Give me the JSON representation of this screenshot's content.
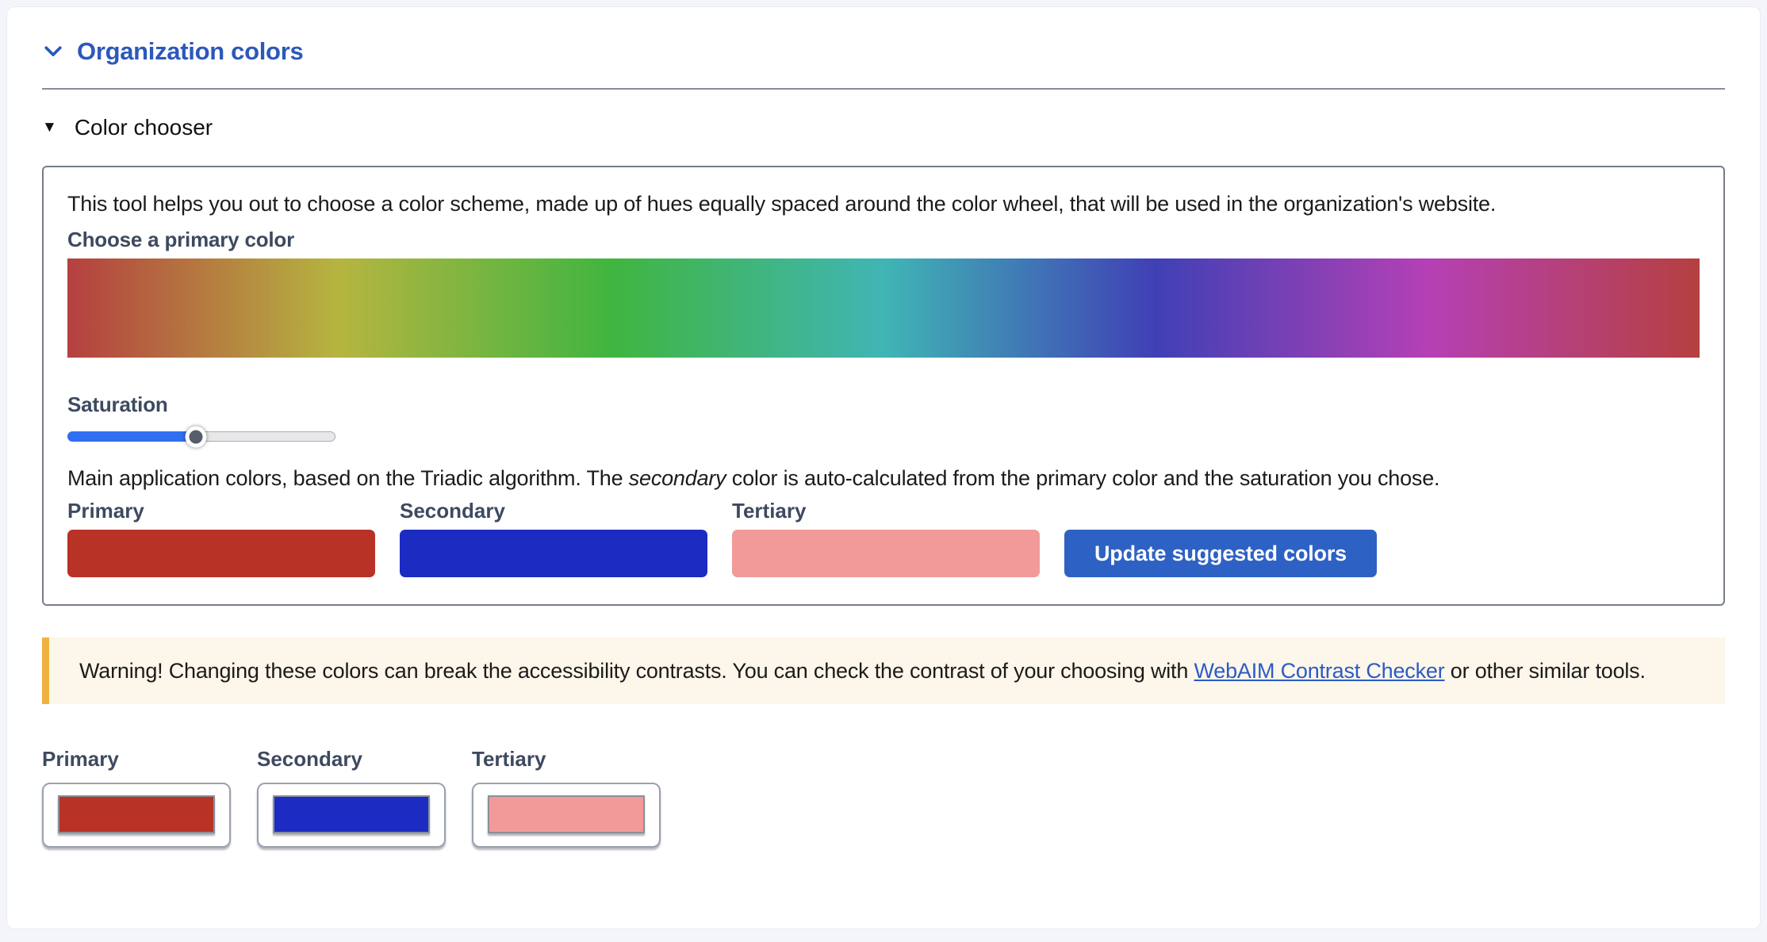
{
  "accordion": {
    "title": "Organization colors",
    "icon": "chevron-down-icon"
  },
  "details": {
    "marker_glyph": "▼",
    "summary": "Color chooser"
  },
  "chooser": {
    "description": "This tool helps you out to choose a color scheme, made up of hues equally spaced around the color wheel, that will be used in the organization's website.",
    "primary_picker_label": "Choose a primary color",
    "hue_gradient_stops": [
      "hsl(0, 48%, 48%)",
      "hsl(30, 48%, 48%)",
      "hsl(60, 48%, 48%)",
      "hsl(90, 48%, 48%)",
      "hsl(120, 48%, 48%)",
      "hsl(150, 48%, 48%)",
      "hsl(180, 48%, 48%)",
      "hsl(210, 48%, 48%)",
      "hsl(240, 48%, 48%)",
      "hsl(270, 48%, 48%)",
      "hsl(300, 48%, 48%)",
      "hsl(330, 48%, 48%)",
      "hsl(360, 48%, 48%)"
    ],
    "saturation": {
      "label": "Saturation",
      "value_percent": 48,
      "fill_color": "#2f6ff0",
      "thumb_color": "#575d6b"
    },
    "main_colors_text": {
      "before_italic": "Main application colors, based on the Triadic algorithm. The ",
      "italic": "secondary",
      "after_italic": " color is auto-calculated from the primary color and the saturation you chose."
    },
    "suggested": [
      {
        "label": "Primary",
        "color": "#b93226"
      },
      {
        "label": "Secondary",
        "color": "#1c2bc2"
      },
      {
        "label": "Tertiary",
        "color": "#f29a9a"
      }
    ],
    "update_button_label": "Update suggested colors"
  },
  "warning": {
    "text_before_link": "Warning! Changing these colors can break the accessibility contrasts. You can check the contrast of your choosing with ",
    "link_text": "WebAIM Contrast Checker",
    "text_after_link": " or other similar tools.",
    "background": "#fdf6ea",
    "accent_color": "#eeb33f"
  },
  "pickers": [
    {
      "label": "Primary",
      "color": "#b93226"
    },
    {
      "label": "Secondary",
      "color": "#1c2bc2"
    },
    {
      "label": "Tertiary",
      "color": "#f29a9a"
    }
  ],
  "colors": {
    "heading_blue": "#2c58bb",
    "link_blue": "#2a5bc7",
    "button_blue": "#2e61c4"
  }
}
